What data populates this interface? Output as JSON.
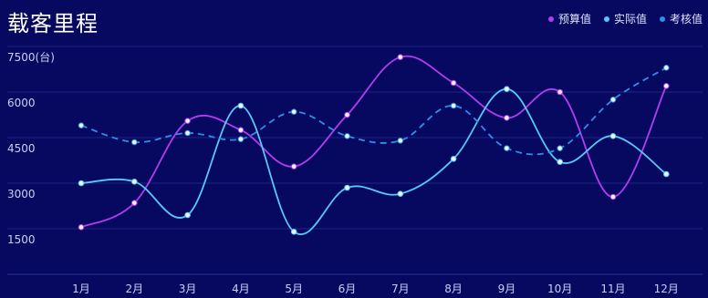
{
  "chart_data": {
    "type": "line",
    "title": "载客里程",
    "ylabel": "",
    "xlabel": "",
    "yunit_label": "(台)",
    "categories": [
      "1月",
      "2月",
      "3月",
      "4月",
      "5月",
      "6月",
      "7月",
      "8月",
      "9月",
      "10月",
      "11月",
      "12月"
    ],
    "yticks": [
      1500,
      3000,
      4500,
      6000,
      7500
    ],
    "ylim": [
      0,
      7500
    ],
    "grid": true,
    "legend_position": "top-right",
    "series": [
      {
        "name": "预算值",
        "color": "#b33cf0",
        "style": "solid",
        "values": [
          1550,
          2350,
          5050,
          4750,
          3550,
          5250,
          7150,
          6300,
          5150,
          6000,
          2550,
          6200
        ]
      },
      {
        "name": "实际值",
        "color": "#57c9f5",
        "style": "solid",
        "values": [
          3000,
          3050,
          1950,
          5550,
          1400,
          2850,
          2650,
          3800,
          6100,
          3700,
          4550,
          3300
        ]
      },
      {
        "name": "考核值",
        "color": "#2f8fe8",
        "style": "dashed",
        "values": [
          4900,
          4350,
          4650,
          4450,
          5350,
          4550,
          4400,
          5550,
          4150,
          4150,
          5750,
          6800
        ]
      }
    ]
  }
}
